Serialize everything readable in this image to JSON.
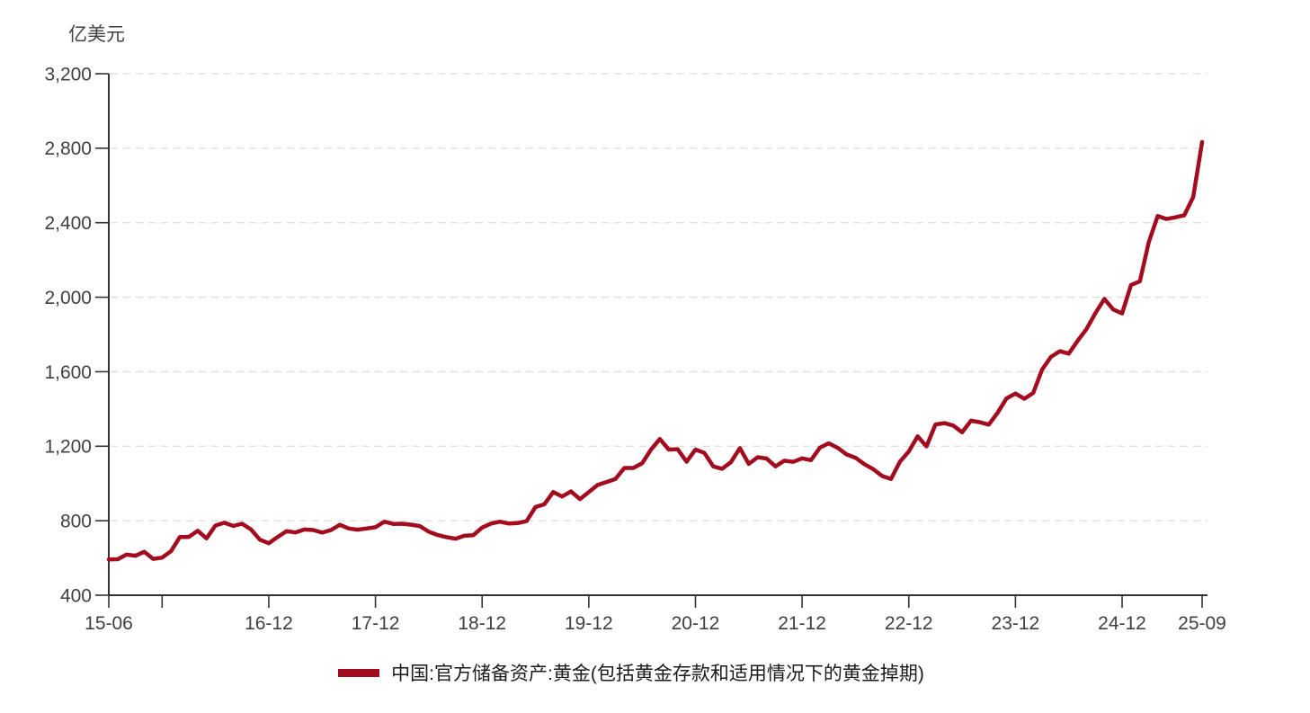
{
  "chart_data": {
    "type": "line",
    "title": "",
    "xlabel": "",
    "ylabel": "亿美元",
    "frequency": "monthly",
    "x_start": "2015-06",
    "x_end": "2025-09",
    "ylim": [
      400,
      3200
    ],
    "grid": "horizontal-dashed",
    "legend_position": "bottom-center",
    "colors": {
      "series": "#A30C1F",
      "axis": "#333333",
      "grid": "#DCDCDC",
      "tick_text": "#404040"
    },
    "y_ticks": [
      {
        "value": 3200,
        "label": "3,200"
      },
      {
        "value": 2800,
        "label": "2,800"
      },
      {
        "value": 2400,
        "label": "2,400"
      },
      {
        "value": 2000,
        "label": "2,000"
      },
      {
        "value": 1600,
        "label": "1,600"
      },
      {
        "value": 1200,
        "label": "1,200"
      },
      {
        "value": 800,
        "label": "800"
      },
      {
        "value": 400,
        "label": "400"
      }
    ],
    "x_ticks": [
      {
        "label": "15-06",
        "month": 0
      },
      {
        "label": "",
        "month": 6
      },
      {
        "label": "16-12",
        "month": 18
      },
      {
        "label": "17-12",
        "month": 30
      },
      {
        "label": "18-12",
        "month": 42
      },
      {
        "label": "19-12",
        "month": 54
      },
      {
        "label": "20-12",
        "month": 66
      },
      {
        "label": "21-12",
        "month": 78
      },
      {
        "label": "22-12",
        "month": 90
      },
      {
        "label": "23-12",
        "month": 102
      },
      {
        "label": "24-12",
        "month": 114
      },
      {
        "label": "25-09",
        "month": 123
      }
    ],
    "series": [
      {
        "name": "中国:官方储备资产:黄金(包括黄金存款和适用情况下的黄金掉期)",
        "color": "#A30C1F",
        "values": [
          592,
          593,
          618,
          612,
          633,
          595,
          602,
          636,
          713,
          713,
          746,
          705,
          774,
          789,
          772,
          784,
          753,
          698,
          679,
          713,
          744,
          737,
          753,
          750,
          736,
          750,
          778,
          758,
          752,
          758,
          765,
          795,
          783,
          784,
          779,
          771,
          741,
          723,
          712,
          703,
          719,
          722,
          763,
          785,
          795,
          785,
          787,
          798,
          873,
          888,
          954,
          930,
          957,
          916,
          954,
          992,
          1008,
          1024,
          1083,
          1083,
          1108,
          1182,
          1239,
          1182,
          1184,
          1117,
          1182,
          1164,
          1092,
          1079,
          1115,
          1190,
          1105,
          1141,
          1134,
          1092,
          1122,
          1116,
          1135,
          1125,
          1192,
          1216,
          1191,
          1156,
          1138,
          1104,
          1077,
          1040,
          1024,
          1117,
          1172,
          1253,
          1199,
          1317,
          1324,
          1311,
          1275,
          1337,
          1329,
          1316,
          1380,
          1457,
          1483,
          1455,
          1486,
          1611,
          1680,
          1710,
          1697,
          1766,
          1830,
          1915,
          1991,
          1934,
          1913,
          2065,
          2086,
          2296,
          2436,
          2420,
          2429,
          2440,
          2538,
          2833
        ]
      }
    ]
  },
  "legend": {
    "series_label": "中国:官方储备资产:黄金(包括黄金存款和适用情况下的黄金掉期)"
  }
}
